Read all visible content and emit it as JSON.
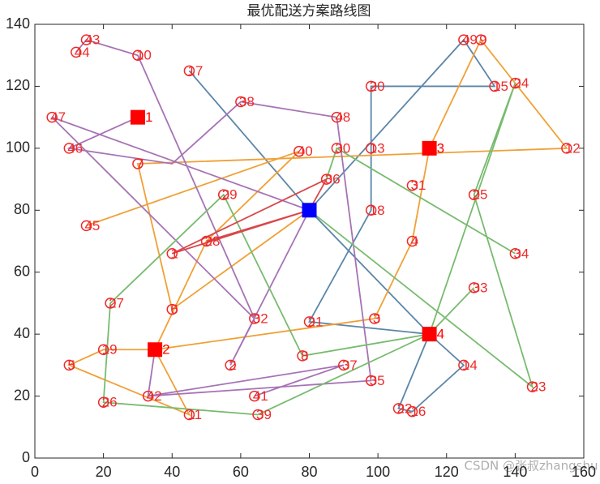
{
  "chart_data": {
    "type": "route",
    "title": "最优配送方案路线图",
    "watermark": "CSDN @张叔zhangshu",
    "xlim": [
      0,
      160
    ],
    "ylim": [
      0,
      140
    ],
    "xticks": [
      0,
      20,
      40,
      60,
      80,
      100,
      120,
      140,
      160
    ],
    "yticks": [
      0,
      20,
      40,
      60,
      80,
      100,
      120,
      140
    ],
    "customers": {
      "color": "#ee2a2a",
      "labels": [
        "1",
        "2",
        "3",
        "4",
        "5",
        "6",
        "7",
        "8",
        "9",
        "10",
        "11",
        "12",
        "13",
        "14",
        "15",
        "16",
        "17",
        "18",
        "19",
        "20",
        "21",
        "22",
        "23",
        "24",
        "25",
        "26",
        "27",
        "28",
        "29",
        "30",
        "31",
        "32",
        "33",
        "34",
        "35",
        "36",
        "37",
        "38",
        "39",
        "40",
        "41",
        "42",
        "43",
        "44",
        "45",
        "46",
        "47",
        "48",
        "49"
      ],
      "x": [
        40,
        57,
        99,
        110,
        10,
        40,
        30,
        78,
        130,
        30,
        45,
        155,
        98,
        125,
        134,
        110,
        45,
        98,
        20,
        98,
        80,
        106,
        145,
        140,
        128,
        20,
        22,
        50,
        55,
        88,
        110,
        64,
        128,
        140,
        98,
        85,
        90,
        60,
        65,
        77,
        64,
        33,
        15,
        12,
        15,
        10,
        5,
        88,
        125
      ],
      "y": [
        66,
        30,
        45,
        70,
        30,
        48,
        95,
        33,
        135,
        130,
        14,
        100,
        100,
        30,
        120,
        15,
        125,
        80,
        35,
        120,
        44,
        16,
        23,
        121,
        85,
        18,
        50,
        70,
        85,
        100,
        88,
        45,
        55,
        66,
        25,
        90,
        30,
        115,
        14,
        99,
        20,
        20,
        135,
        131,
        75,
        100,
        110,
        110,
        135
      ]
    },
    "depots": {
      "color": "#ff0000",
      "labels": [
        "1",
        "2",
        "3",
        "4"
      ],
      "x": [
        30,
        35,
        115,
        115
      ],
      "y": [
        110,
        35,
        100,
        40
      ]
    },
    "center": {
      "color": "#0000ff",
      "x": [
        80
      ],
      "y": [
        80
      ]
    },
    "routes": [
      {
        "color": "#5b86a8",
        "x": [
          80,
          125,
          134,
          98,
          98,
          80,
          115
        ],
        "y": [
          80,
          135,
          120,
          120,
          80,
          44,
          40
        ]
      },
      {
        "color": "#5b86a8",
        "x": [
          115,
          125,
          110,
          106,
          115
        ],
        "y": [
          40,
          30,
          15,
          16,
          40
        ]
      },
      {
        "color": "#5b86a8",
        "x": [
          115,
          80,
          45
        ],
        "y": [
          40,
          80,
          125
        ]
      },
      {
        "color": "#f0a035",
        "x": [
          115,
          130,
          140,
          155,
          30,
          40,
          80
        ],
        "y": [
          100,
          135,
          121,
          100,
          95,
          48,
          80
        ]
      },
      {
        "color": "#f0a035",
        "x": [
          115,
          110,
          99,
          35,
          45,
          10,
          20,
          35
        ],
        "y": [
          100,
          70,
          45,
          35,
          14,
          30,
          35,
          35
        ]
      },
      {
        "color": "#f0a035",
        "x": [
          35,
          50,
          77,
          15
        ],
        "y": [
          35,
          70,
          99,
          75
        ]
      },
      {
        "color": "#a673b5",
        "x": [
          12,
          15,
          30,
          64,
          57,
          80
        ],
        "y": [
          131,
          135,
          130,
          45,
          30,
          80
        ]
      },
      {
        "color": "#a673b5",
        "x": [
          30,
          10,
          40,
          60,
          88,
          98,
          33,
          35
        ],
        "y": [
          110,
          100,
          95,
          115,
          110,
          25,
          20,
          35
        ]
      },
      {
        "color": "#a673b5",
        "x": [
          80,
          5,
          64
        ],
        "y": [
          80,
          110,
          45
        ]
      },
      {
        "color": "#a673b5",
        "x": [
          33,
          90,
          64
        ],
        "y": [
          20,
          30,
          20
        ]
      },
      {
        "color": "#77bb6e",
        "x": [
          115,
          78,
          55,
          22,
          20,
          65,
          115,
          128
        ],
        "y": [
          40,
          33,
          85,
          50,
          18,
          14,
          40,
          55
        ]
      },
      {
        "color": "#77bb6e",
        "x": [
          80,
          145,
          128,
          140,
          115
        ],
        "y": [
          80,
          23,
          85,
          121,
          40
        ]
      },
      {
        "color": "#77bb6e",
        "x": [
          85,
          88,
          140
        ],
        "y": [
          90,
          100,
          66
        ]
      },
      {
        "color": "#d9474a",
        "x": [
          80,
          40,
          85,
          80,
          50
        ],
        "y": [
          80,
          66,
          90,
          80,
          70
        ]
      }
    ]
  }
}
